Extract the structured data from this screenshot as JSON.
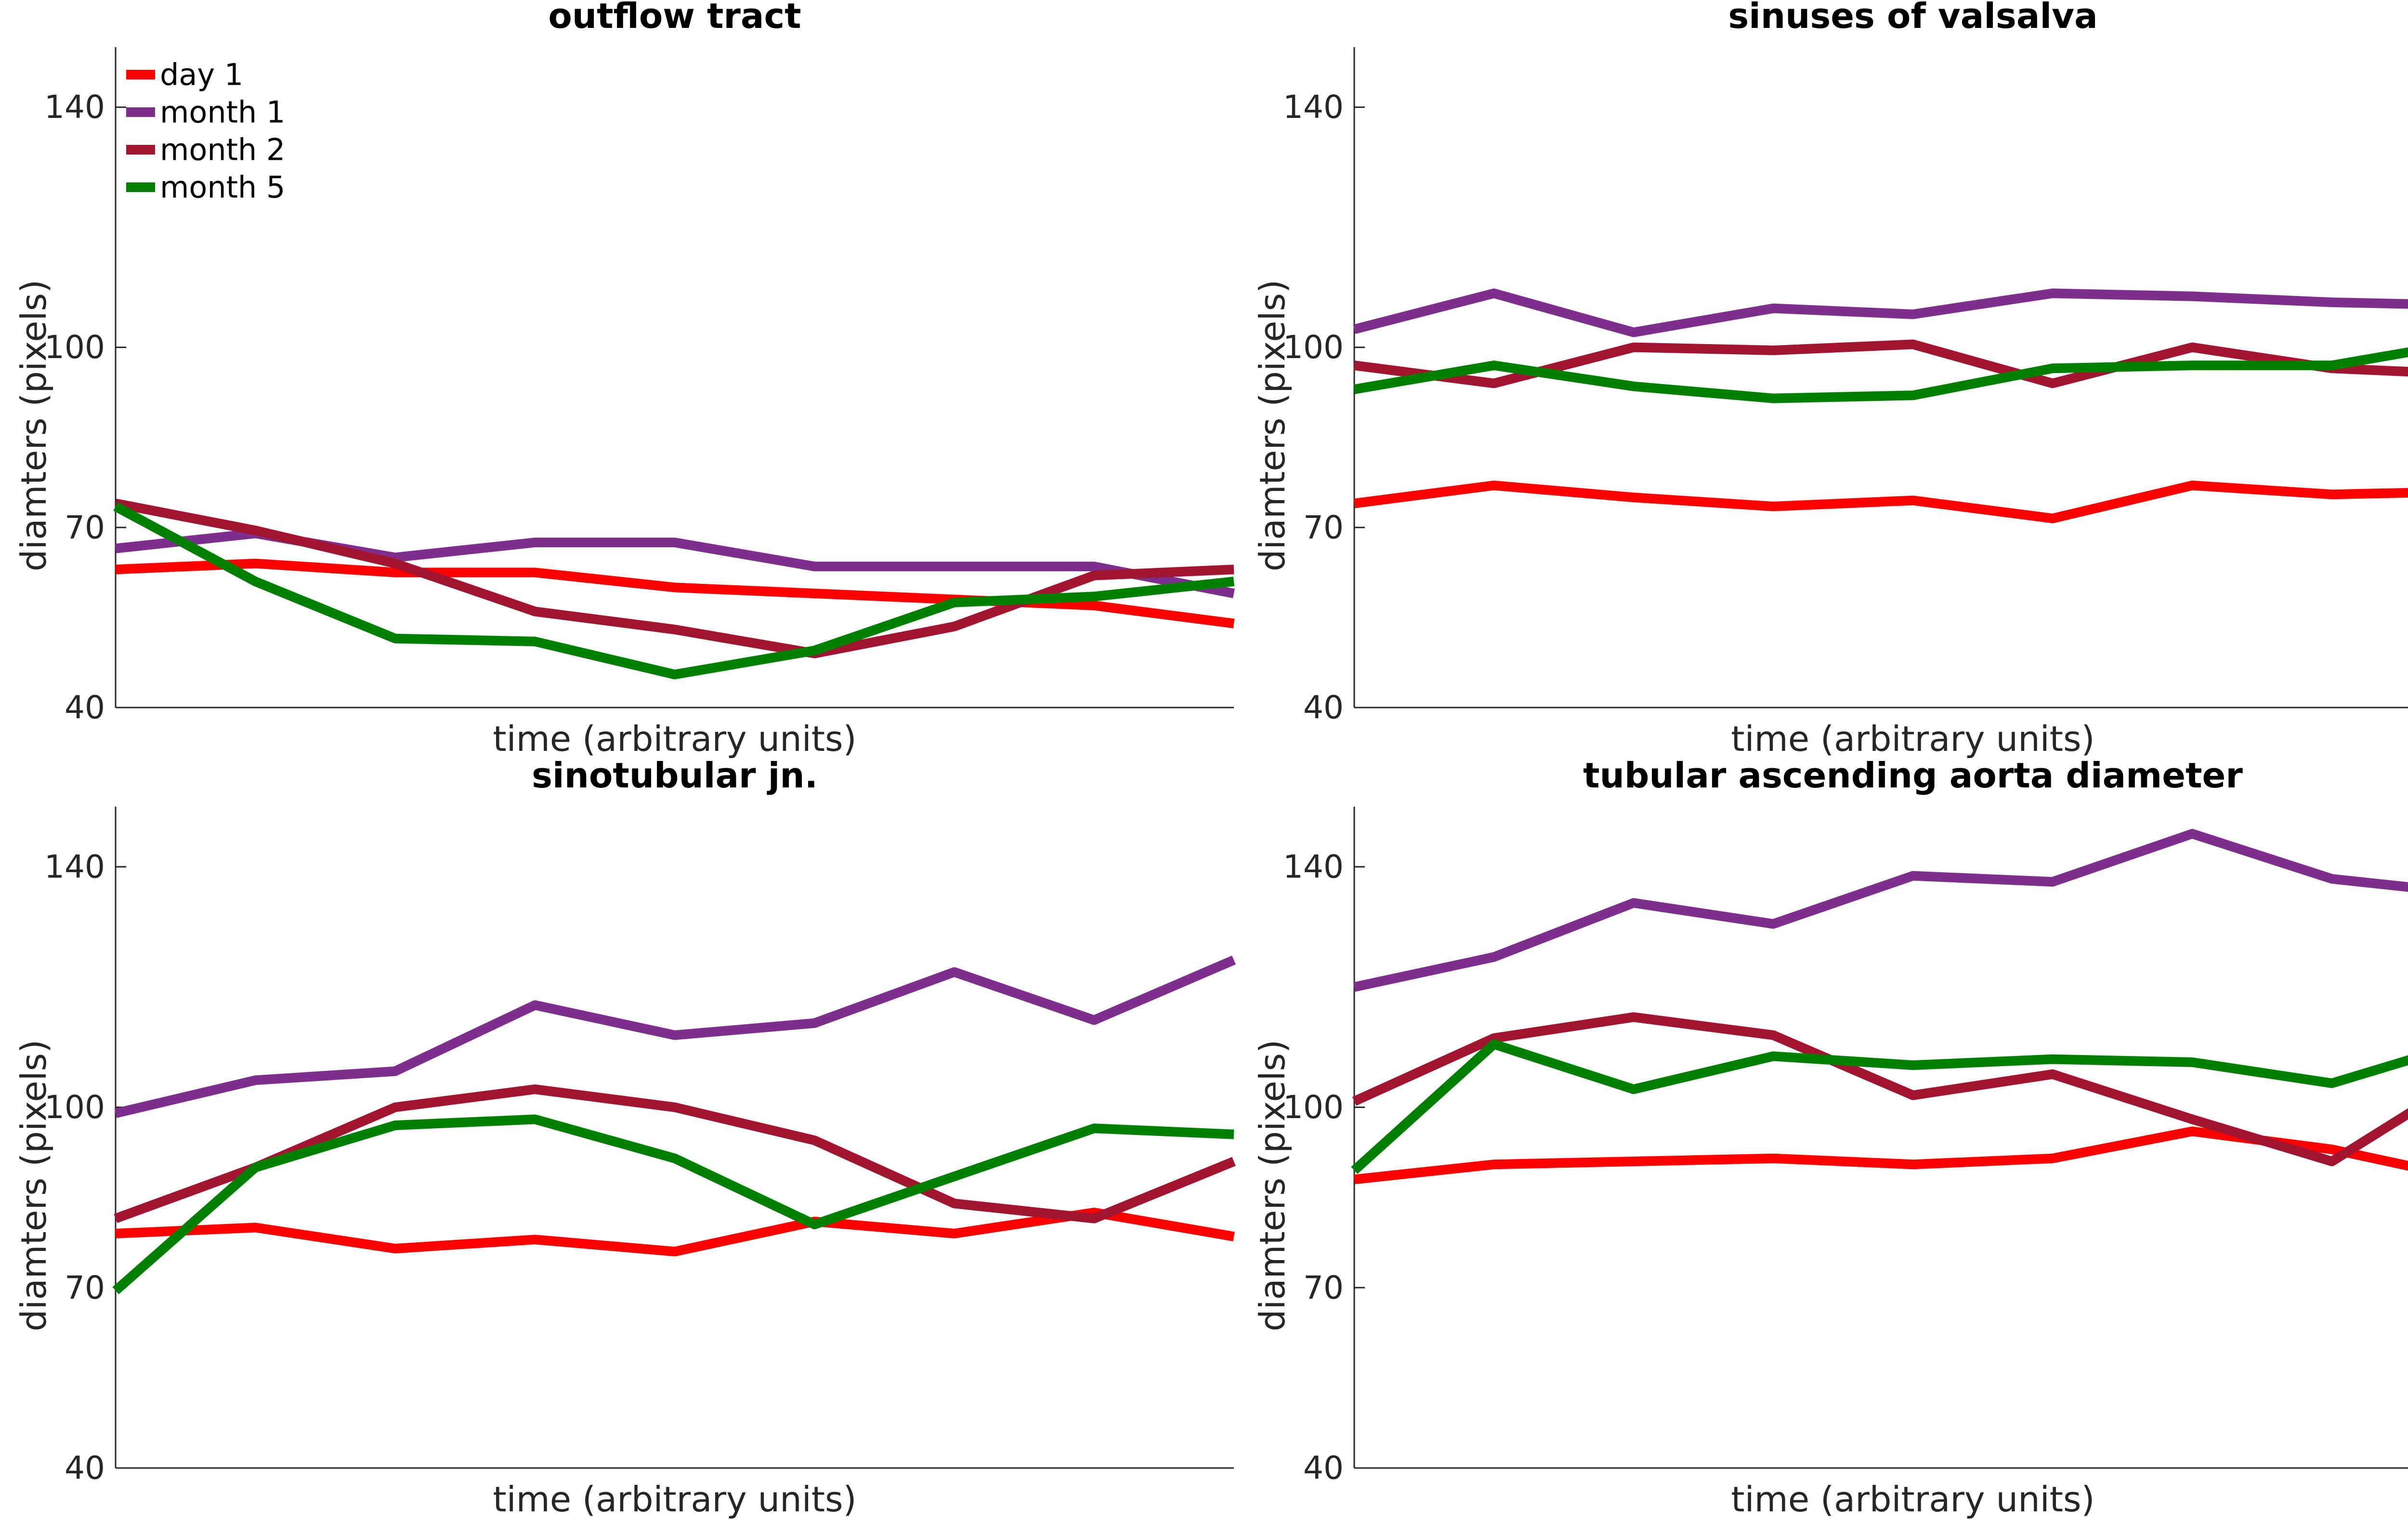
{
  "chart_data": [
    {
      "type": "line",
      "title": "outflow tract",
      "xlabel": "time (arbitrary units)",
      "ylabel": "diamters (pixels)",
      "ylim": [
        40,
        150
      ],
      "yticks": [
        40,
        70,
        100,
        140
      ],
      "xlim": [
        1,
        9
      ],
      "x": [
        1,
        2,
        3,
        4,
        5,
        6,
        7,
        8,
        9
      ],
      "legend": "top-left",
      "series": [
        {
          "name": "day 1",
          "color": "#ff0000",
          "values": [
            63,
            64,
            62.5,
            62.5,
            60,
            59,
            58,
            57,
            54
          ]
        },
        {
          "name": "month 1",
          "color": "#7e2f8e",
          "values": [
            66.5,
            69,
            65,
            67.5,
            67.5,
            63.5,
            63.5,
            63.5,
            59
          ]
        },
        {
          "name": "month 2",
          "color": "#a2142f",
          "values": [
            74,
            69.5,
            64,
            56,
            53,
            49,
            53.5,
            62,
            63
          ]
        },
        {
          "name": "month 5",
          "color": "#008000",
          "values": [
            73.5,
            61,
            51.5,
            51,
            45.5,
            49.5,
            57.5,
            58.5,
            61
          ]
        }
      ]
    },
    {
      "type": "line",
      "title": "sinuses of valsalva",
      "xlabel": "time (arbitrary units)",
      "ylabel": "diamters (pixels)",
      "ylim": [
        40,
        150
      ],
      "yticks": [
        40,
        70,
        100,
        140
      ],
      "xlim": [
        1,
        9
      ],
      "x": [
        1,
        2,
        3,
        4,
        5,
        6,
        7,
        8,
        9
      ],
      "series": [
        {
          "name": "day 1",
          "color": "#ff0000",
          "values": [
            74,
            77,
            75,
            73.5,
            74.5,
            71.5,
            77,
            75.5,
            76
          ]
        },
        {
          "name": "month 1",
          "color": "#7e2f8e",
          "values": [
            103,
            109,
            102.5,
            106.5,
            105.5,
            109,
            108.5,
            107.5,
            107
          ]
        },
        {
          "name": "month 2",
          "color": "#a2142f",
          "values": [
            97,
            94,
            100,
            99.5,
            100.5,
            94,
            100,
            96.5,
            95.5
          ]
        },
        {
          "name": "month 5",
          "color": "#008000",
          "values": [
            93,
            97,
            93.5,
            91.5,
            92,
            96.5,
            97,
            97,
            101
          ]
        }
      ]
    },
    {
      "type": "line",
      "title": "sinotubular jn.",
      "xlabel": "time (arbitrary units)",
      "ylabel": "diamters (pixels)",
      "ylim": [
        40,
        150
      ],
      "yticks": [
        40,
        70,
        100,
        140
      ],
      "xlim": [
        1,
        9
      ],
      "x": [
        1,
        2,
        3,
        4,
        5,
        6,
        7,
        8,
        9
      ],
      "series": [
        {
          "name": "day 1",
          "color": "#ff0000",
          "values": [
            79,
            80,
            76.5,
            78,
            76,
            81,
            79,
            82.5,
            78.5
          ]
        },
        {
          "name": "month 1",
          "color": "#7e2f8e",
          "values": [
            99,
            104.5,
            106,
            117,
            112,
            114,
            122.5,
            114.5,
            124.5
          ]
        },
        {
          "name": "month 2",
          "color": "#a2142f",
          "values": [
            81.5,
            90,
            100,
            103,
            100,
            94.5,
            84,
            81.5,
            91
          ]
        },
        {
          "name": "month 5",
          "color": "#008000",
          "values": [
            69.5,
            90,
            97,
            98,
            91.5,
            80.5,
            88.5,
            96.5,
            95.5
          ]
        }
      ]
    },
    {
      "type": "line",
      "title": "tubular ascending aorta diameter",
      "xlabel": "time (arbitrary units)",
      "ylabel": "diamters (pixels)",
      "ylim": [
        40,
        150
      ],
      "yticks": [
        40,
        70,
        100,
        140
      ],
      "xlim": [
        1,
        9
      ],
      "x": [
        1,
        2,
        3,
        4,
        5,
        6,
        7,
        8,
        9
      ],
      "series": [
        {
          "name": "day 1",
          "color": "#ff0000",
          "values": [
            88,
            90.5,
            91,
            91.5,
            90.5,
            91.5,
            96,
            93,
            88
          ]
        },
        {
          "name": "month 1",
          "color": "#7e2f8e",
          "values": [
            120,
            125,
            134,
            130.5,
            138.5,
            137.5,
            145.5,
            138,
            135.5
          ]
        },
        {
          "name": "month 2",
          "color": "#a2142f",
          "values": [
            101,
            111.5,
            115,
            112,
            102,
            105.5,
            98,
            91,
            105.5
          ]
        },
        {
          "name": "month 5",
          "color": "#008000",
          "values": [
            89.5,
            110.5,
            103,
            108.5,
            107,
            108,
            107.5,
            104,
            111
          ]
        }
      ]
    }
  ]
}
